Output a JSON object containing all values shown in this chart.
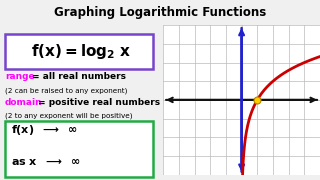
{
  "title": "Graphing Logarithmic Functions",
  "title_fontsize": 8.5,
  "bg_color": "#f0f0f0",
  "box1_color": "#7744cc",
  "box2_color": "#22aa44",
  "range_color": "#ff00ff",
  "domain_color": "#ff00ff",
  "curve_color": "#cc0000",
  "grid_color": "#bbbbbb",
  "axis_color": "#111111",
  "yaxis_color": "#2222cc",
  "dot_color": "#ffcc00",
  "plot_xlim": [
    -5,
    5
  ],
  "plot_ylim": [
    -4,
    4
  ],
  "separator_color": "#888888"
}
